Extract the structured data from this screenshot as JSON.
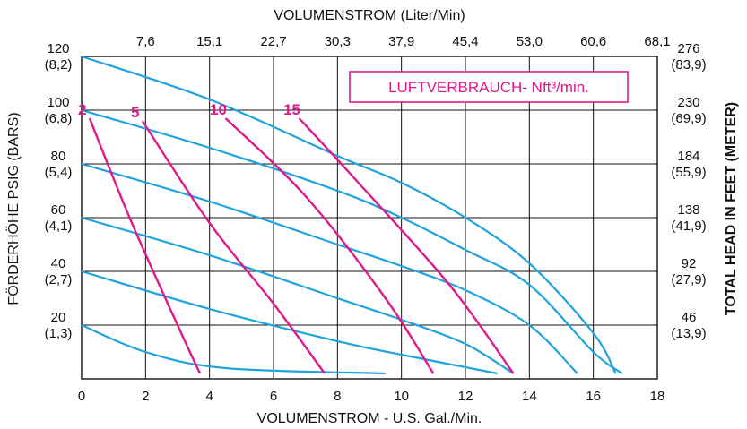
{
  "chart_data": {
    "type": "line",
    "title": "VOLUMENSTROM (Liter/Min)",
    "xlabel": "VOLUMENSTROM - U.S. Gal./Min.",
    "ylabel_left": "FÖRDERHÖHE PSIG (BARS)",
    "ylabel_right": "TOTAL HEAD IN FEET (METER)",
    "legend_label": "LUFTVERBRAUCH- Nft³/min.",
    "xlim": [
      0,
      18
    ],
    "ylim": [
      0,
      120
    ],
    "grid": true,
    "x_ticks": [
      "0",
      "2",
      "4",
      "6",
      "8",
      "10",
      "12",
      "14",
      "16",
      "18"
    ],
    "top_ticks": [
      "7,6",
      "15,1",
      "22,7",
      "30,3",
      "37,9",
      "45,4",
      "53,0",
      "60,6",
      "68,1"
    ],
    "left_ticks": [
      {
        "v": 120,
        "l1": "120",
        "l2": "(8,2)"
      },
      {
        "v": 100,
        "l1": "100",
        "l2": "(6,8)"
      },
      {
        "v": 80,
        "l1": "80",
        "l2": "(5,4)"
      },
      {
        "v": 60,
        "l1": "60",
        "l2": "(4,1)"
      },
      {
        "v": 40,
        "l1": "40",
        "l2": "(2,7)"
      },
      {
        "v": 20,
        "l1": "20",
        "l2": "(1,3)"
      }
    ],
    "right_ticks": [
      {
        "v": 120,
        "l1": "276",
        "l2": "(83,9)"
      },
      {
        "v": 100,
        "l1": "230",
        "l2": "(69,9)"
      },
      {
        "v": 80,
        "l1": "184",
        "l2": "(55,9)"
      },
      {
        "v": 60,
        "l1": "138",
        "l2": "(41,9)"
      },
      {
        "v": 40,
        "l1": "92",
        "l2": "(27,9)"
      },
      {
        "v": 20,
        "l1": "46",
        "l2": "(13,9)"
      }
    ],
    "pressure_curves": [
      {
        "inlet_psig": 120,
        "points": [
          [
            0,
            120
          ],
          [
            4,
            104
          ],
          [
            8,
            83
          ],
          [
            10,
            73
          ],
          [
            12,
            60
          ],
          [
            14,
            43
          ],
          [
            16,
            17
          ],
          [
            16.7,
            2
          ]
        ]
      },
      {
        "inlet_psig": 100,
        "points": [
          [
            0,
            100
          ],
          [
            4,
            86
          ],
          [
            8,
            70
          ],
          [
            10,
            60
          ],
          [
            12,
            48
          ],
          [
            14,
            35
          ],
          [
            16,
            10
          ],
          [
            16.9,
            2
          ]
        ]
      },
      {
        "inlet_psig": 80,
        "points": [
          [
            0,
            80
          ],
          [
            4,
            66
          ],
          [
            8,
            50
          ],
          [
            10,
            42
          ],
          [
            12,
            33
          ],
          [
            14,
            20
          ],
          [
            15.5,
            2
          ]
        ]
      },
      {
        "inlet_psig": 60,
        "points": [
          [
            0,
            60
          ],
          [
            4,
            46
          ],
          [
            8,
            30
          ],
          [
            10,
            22
          ],
          [
            12,
            13
          ],
          [
            13.5,
            2
          ]
        ]
      },
      {
        "inlet_psig": 40,
        "points": [
          [
            0,
            40
          ],
          [
            4,
            26
          ],
          [
            8,
            14
          ],
          [
            10,
            9
          ],
          [
            13,
            2
          ]
        ]
      },
      {
        "inlet_psig": 20,
        "points": [
          [
            0,
            20
          ],
          [
            2,
            10
          ],
          [
            4.5,
            4
          ],
          [
            9.5,
            2
          ]
        ]
      }
    ],
    "air_curves": [
      {
        "label": "2",
        "points": [
          [
            0.25,
            97
          ],
          [
            1.5,
            60
          ],
          [
            3,
            20
          ],
          [
            3.7,
            2
          ]
        ]
      },
      {
        "label": "5",
        "points": [
          [
            1.9,
            96
          ],
          [
            4,
            58
          ],
          [
            6,
            28
          ],
          [
            7.6,
            2
          ]
        ]
      },
      {
        "label": "10",
        "points": [
          [
            4.5,
            97
          ],
          [
            7,
            68
          ],
          [
            9.5,
            30
          ],
          [
            11,
            2
          ]
        ]
      },
      {
        "label": "15",
        "points": [
          [
            6.8,
            97
          ],
          [
            8.5,
            75
          ],
          [
            11.5,
            35
          ],
          [
            13.5,
            2
          ]
        ]
      }
    ],
    "series_colors": {
      "pressure": "#1fa3dc",
      "air": "#e0198b",
      "grid": "#111111"
    }
  }
}
